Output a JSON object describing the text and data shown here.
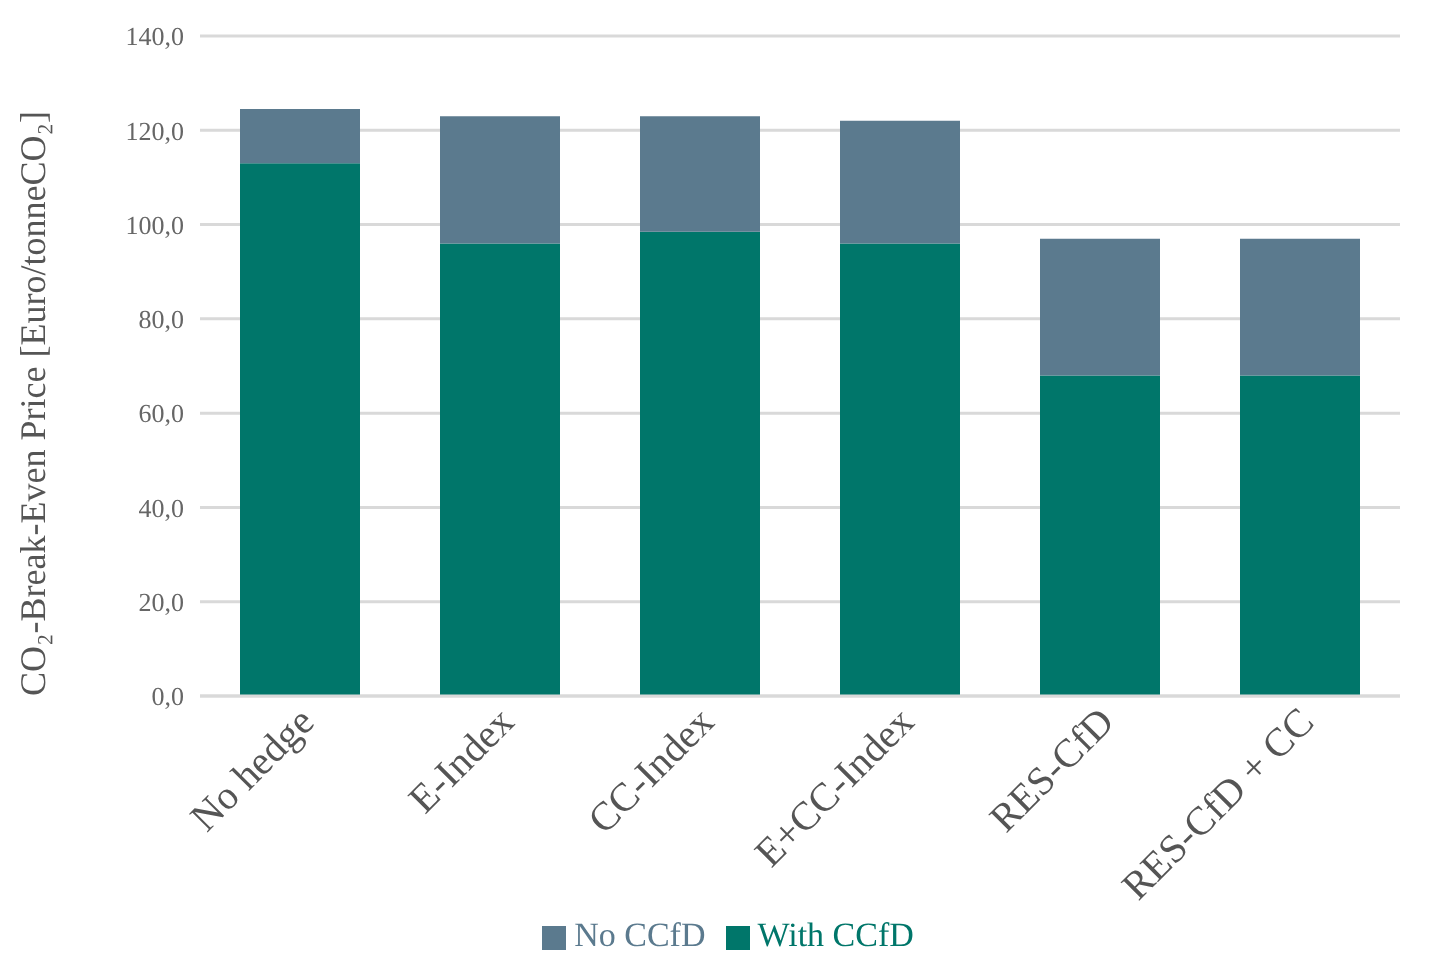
{
  "chart_data": {
    "type": "bar",
    "stacked": true,
    "ylabel": "CO₂-Break-Even Price [Euro/tonneCO₂]",
    "categories": [
      "No hedge",
      "E-Index",
      "CC-Index",
      "E+CC-Index",
      "RES-CfD",
      "RES-CfD + CC"
    ],
    "series": [
      {
        "name": "With CCfD",
        "color": "#00766a",
        "values": [
          113,
          96,
          98.5,
          96,
          68,
          68
        ]
      },
      {
        "name": "No CCfD",
        "color": "#5b7a8e",
        "values": [
          11.5,
          27,
          24.5,
          26,
          29,
          29
        ]
      }
    ],
    "ylim": [
      0,
      140
    ],
    "yticks": [
      {
        "value": 0,
        "label": "0,0"
      },
      {
        "value": 20,
        "label": "20,0"
      },
      {
        "value": 40,
        "label": "40,0"
      },
      {
        "value": 60,
        "label": "60,0"
      },
      {
        "value": 80,
        "label": "80,0"
      },
      {
        "value": 100,
        "label": "100,0"
      },
      {
        "value": 120,
        "label": "120,0"
      },
      {
        "value": 140,
        "label": "140,0"
      }
    ],
    "grid": "y",
    "legend": "bottom"
  }
}
